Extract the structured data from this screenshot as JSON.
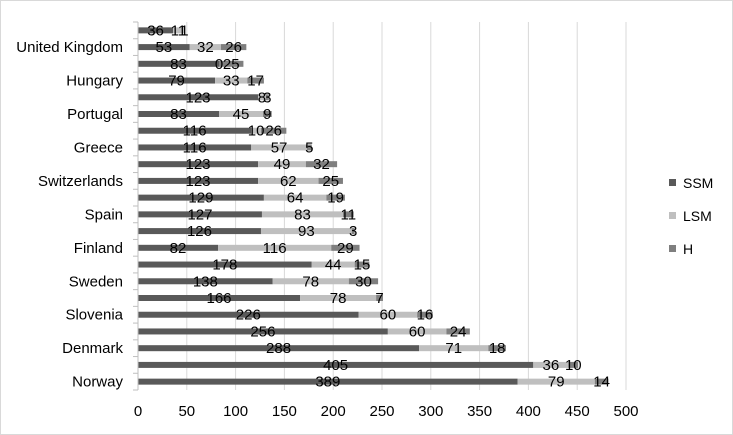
{
  "chart_data": {
    "type": "bar",
    "orientation": "horizontal",
    "stacked": true,
    "categories": [
      "Norway",
      "",
      "Denmark",
      "",
      "Slovenia",
      "",
      "Sweden",
      "",
      "Finland",
      "",
      "Spain",
      "",
      "Switzerlands",
      "",
      "Greece",
      "",
      "Portugal",
      "",
      "Hungary",
      "",
      "United Kingdom",
      ""
    ],
    "series": [
      {
        "name": "SSM",
        "color": "#595959",
        "values": [
          389,
          405,
          288,
          256,
          226,
          166,
          138,
          178,
          82,
          126,
          127,
          129,
          123,
          123,
          116,
          116,
          83,
          123,
          79,
          83,
          53,
          36
        ]
      },
      {
        "name": "LSM",
        "color": "#bfbfbf",
        "values": [
          79,
          36,
          71,
          60,
          60,
          78,
          78,
          44,
          116,
          93,
          83,
          64,
          62,
          49,
          57,
          10,
          45,
          8,
          33,
          0,
          32,
          11
        ]
      },
      {
        "name": "H",
        "color": "#7f7f7f",
        "values": [
          14,
          10,
          18,
          24,
          16,
          7,
          30,
          15,
          29,
          3,
          11,
          19,
          25,
          32,
          5,
          26,
          9,
          3,
          17,
          25,
          26,
          1
        ]
      }
    ],
    "value_labels": [
      [
        "389",
        "79",
        "14"
      ],
      [
        "405",
        "36",
        "10"
      ],
      [
        "288",
        "71",
        "18"
      ],
      [
        "256",
        "60",
        "24"
      ],
      [
        "226",
        "60",
        "16"
      ],
      [
        "166",
        "78",
        "7"
      ],
      [
        "138",
        "78",
        "30"
      ],
      [
        "178",
        "44",
        "15"
      ],
      [
        "82",
        "116",
        "29"
      ],
      [
        "126",
        "93",
        "3"
      ],
      [
        "127",
        "83",
        "11"
      ],
      [
        "129",
        "64",
        "19"
      ],
      [
        "123",
        "62",
        "25"
      ],
      [
        "123",
        "49",
        "32"
      ],
      [
        "116",
        "57",
        "5"
      ],
      [
        "116",
        "10",
        "26"
      ],
      [
        "83",
        "45",
        "9"
      ],
      [
        "123",
        "8",
        "3"
      ],
      [
        "79",
        "33",
        "17"
      ],
      [
        "83",
        "0",
        "25"
      ],
      [
        "53",
        "32",
        "26"
      ],
      [
        "36",
        "11",
        "1"
      ]
    ],
    "x_ticks": [
      "0",
      "50",
      "100",
      "150",
      "200",
      "250",
      "300",
      "350",
      "400",
      "450",
      "500"
    ],
    "xlim": [
      0,
      500
    ],
    "grid": "vertical",
    "legend_position": "right",
    "title": "",
    "xlabel": "",
    "ylabel": ""
  }
}
